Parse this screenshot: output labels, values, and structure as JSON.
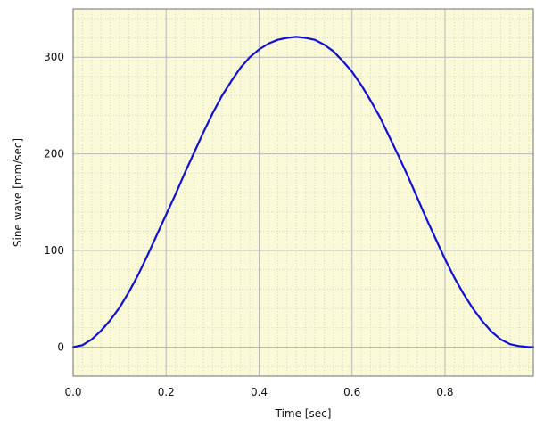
{
  "chart_data": {
    "type": "line",
    "xlabel": "Time [sec]",
    "ylabel": "Sine wave [mm/sec]",
    "xlim": [
      0,
      0.99
    ],
    "ylim": [
      -30,
      350
    ],
    "x_ticks": [
      0.0,
      0.2,
      0.4,
      0.6,
      0.8
    ],
    "x_tick_labels": [
      "0.0",
      "0.2",
      "0.4",
      "0.6",
      "0.8"
    ],
    "y_ticks": [
      0,
      100,
      200,
      300
    ],
    "y_tick_labels": [
      "0",
      "100",
      "200",
      "300"
    ],
    "grid": true,
    "legend": "none",
    "colors": {
      "line": "#1010d8",
      "plot_background": "#fafad8",
      "major_grid": "#b8b8b8",
      "minor_grid": "#d8d8c0",
      "frame": "#707070"
    },
    "series": [
      {
        "x": [
          0.0,
          0.02,
          0.04,
          0.06,
          0.08,
          0.1,
          0.12,
          0.14,
          0.16,
          0.18,
          0.2,
          0.22,
          0.24,
          0.26,
          0.28,
          0.3,
          0.32,
          0.34,
          0.36,
          0.38,
          0.4,
          0.42,
          0.44,
          0.46,
          0.48,
          0.5,
          0.52,
          0.54,
          0.56,
          0.58,
          0.6,
          0.62,
          0.64,
          0.66,
          0.68,
          0.7,
          0.72,
          0.74,
          0.76,
          0.78,
          0.8,
          0.82,
          0.84,
          0.86,
          0.88,
          0.9,
          0.92,
          0.94,
          0.96,
          0.98,
          0.99
        ],
        "y": [
          0,
          2,
          8,
          17,
          28,
          41,
          57,
          75,
          95,
          116,
          137,
          158,
          180,
          201,
          222,
          242,
          260,
          275,
          289,
          300,
          308,
          314,
          318,
          320,
          321,
          320,
          318,
          313,
          306,
          296,
          285,
          271,
          255,
          238,
          218,
          198,
          177,
          155,
          133,
          112,
          91,
          72,
          55,
          40,
          27,
          16,
          8,
          3,
          1,
          0,
          0
        ]
      }
    ]
  }
}
